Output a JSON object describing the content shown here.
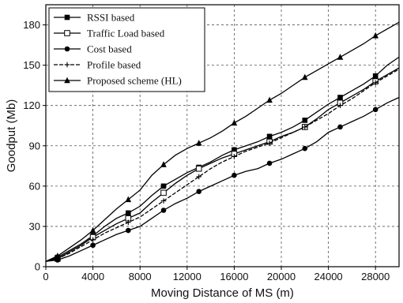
{
  "chart_data": {
    "type": "line",
    "xlabel": "Moving Distance of MS (m)",
    "ylabel": "Goodput (Mb)",
    "xlim": [
      0,
      30000
    ],
    "ylim": [
      0,
      195
    ],
    "xticks": [
      0,
      4000,
      8000,
      12000,
      16000,
      20000,
      24000,
      28000
    ],
    "yticks": [
      0,
      30,
      60,
      90,
      120,
      150,
      180
    ],
    "xtick_labels": [
      "0",
      "4000",
      "8000",
      "12000",
      "16000",
      "20000",
      "24000",
      "28000"
    ],
    "ytick_labels": [
      "0",
      "30",
      "60",
      "90",
      "120",
      "150",
      "180"
    ],
    "grid": true,
    "legend_position": "top-left",
    "series": [
      {
        "name": "RSSI based",
        "marker": "square-filled",
        "x": [
          0,
          1000,
          2000,
          3000,
          4000,
          5000,
          6000,
          7000,
          8000,
          9000,
          10000,
          11000,
          12000,
          13000,
          14000,
          15000,
          16000,
          17000,
          18000,
          19000,
          20000,
          21000,
          22000,
          23000,
          24000,
          25000,
          26000,
          27000,
          28000,
          29000,
          30000
        ],
        "values": [
          4,
          7,
          12,
          17,
          23,
          30,
          36,
          40,
          45,
          53,
          60,
          65,
          70,
          74,
          78,
          83,
          87,
          90,
          93,
          97,
          100,
          104,
          109,
          115,
          121,
          126,
          131,
          136,
          142,
          150,
          156
        ]
      },
      {
        "name": "Traffic Load based",
        "marker": "square-open",
        "x": [
          0,
          1000,
          2000,
          3000,
          4000,
          5000,
          6000,
          7000,
          8000,
          9000,
          10000,
          11000,
          12000,
          13000,
          14000,
          15000,
          16000,
          17000,
          18000,
          19000,
          20000,
          21000,
          22000,
          23000,
          24000,
          25000,
          26000,
          27000,
          28000,
          29000,
          30000
        ],
        "values": [
          4,
          6,
          11,
          16,
          22,
          27,
          32,
          36,
          40,
          48,
          55,
          62,
          68,
          73,
          77,
          81,
          84,
          87,
          90,
          93,
          97,
          100,
          104,
          110,
          117,
          122,
          127,
          132,
          138,
          143,
          148
        ]
      },
      {
        "name": "Cost based",
        "marker": "circle-filled",
        "x": [
          0,
          1000,
          2000,
          3000,
          4000,
          5000,
          6000,
          7000,
          8000,
          9000,
          10000,
          11000,
          12000,
          13000,
          14000,
          15000,
          16000,
          17000,
          18000,
          19000,
          20000,
          21000,
          22000,
          23000,
          24000,
          25000,
          26000,
          27000,
          28000,
          29000,
          30000
        ],
        "values": [
          4,
          5,
          8,
          12,
          16,
          20,
          24,
          27,
          30,
          36,
          42,
          47,
          51,
          56,
          60,
          64,
          68,
          71,
          73,
          77,
          80,
          84,
          88,
          93,
          100,
          104,
          108,
          112,
          117,
          122,
          126
        ]
      },
      {
        "name": "Profile based",
        "marker": "cross-dashed",
        "x": [
          0,
          1000,
          2000,
          3000,
          4000,
          5000,
          6000,
          7000,
          8000,
          9000,
          10000,
          11000,
          12000,
          13000,
          14000,
          15000,
          16000,
          17000,
          18000,
          19000,
          20000,
          21000,
          22000,
          23000,
          24000,
          25000,
          26000,
          27000,
          28000,
          29000,
          30000
        ],
        "values": [
          4,
          6,
          10,
          15,
          20,
          25,
          29,
          33,
          37,
          43,
          49,
          55,
          61,
          67,
          73,
          78,
          82,
          86,
          89,
          92,
          96,
          100,
          104,
          109,
          114,
          120,
          125,
          131,
          137,
          142,
          147
        ]
      },
      {
        "name": "Proposed scheme (HL)",
        "marker": "triangle-filled",
        "x": [
          0,
          1000,
          2000,
          3000,
          4000,
          5000,
          6000,
          7000,
          8000,
          9000,
          10000,
          11000,
          12000,
          13000,
          14000,
          15000,
          16000,
          17000,
          18000,
          19000,
          20000,
          21000,
          22000,
          23000,
          24000,
          25000,
          26000,
          27000,
          28000,
          29000,
          30000
        ],
        "values": [
          4,
          8,
          14,
          20,
          27,
          35,
          43,
          50,
          57,
          68,
          76,
          83,
          88,
          92,
          96,
          101,
          107,
          112,
          118,
          124,
          129,
          135,
          141,
          146,
          151,
          156,
          161,
          166,
          172,
          177,
          182
        ]
      }
    ]
  }
}
